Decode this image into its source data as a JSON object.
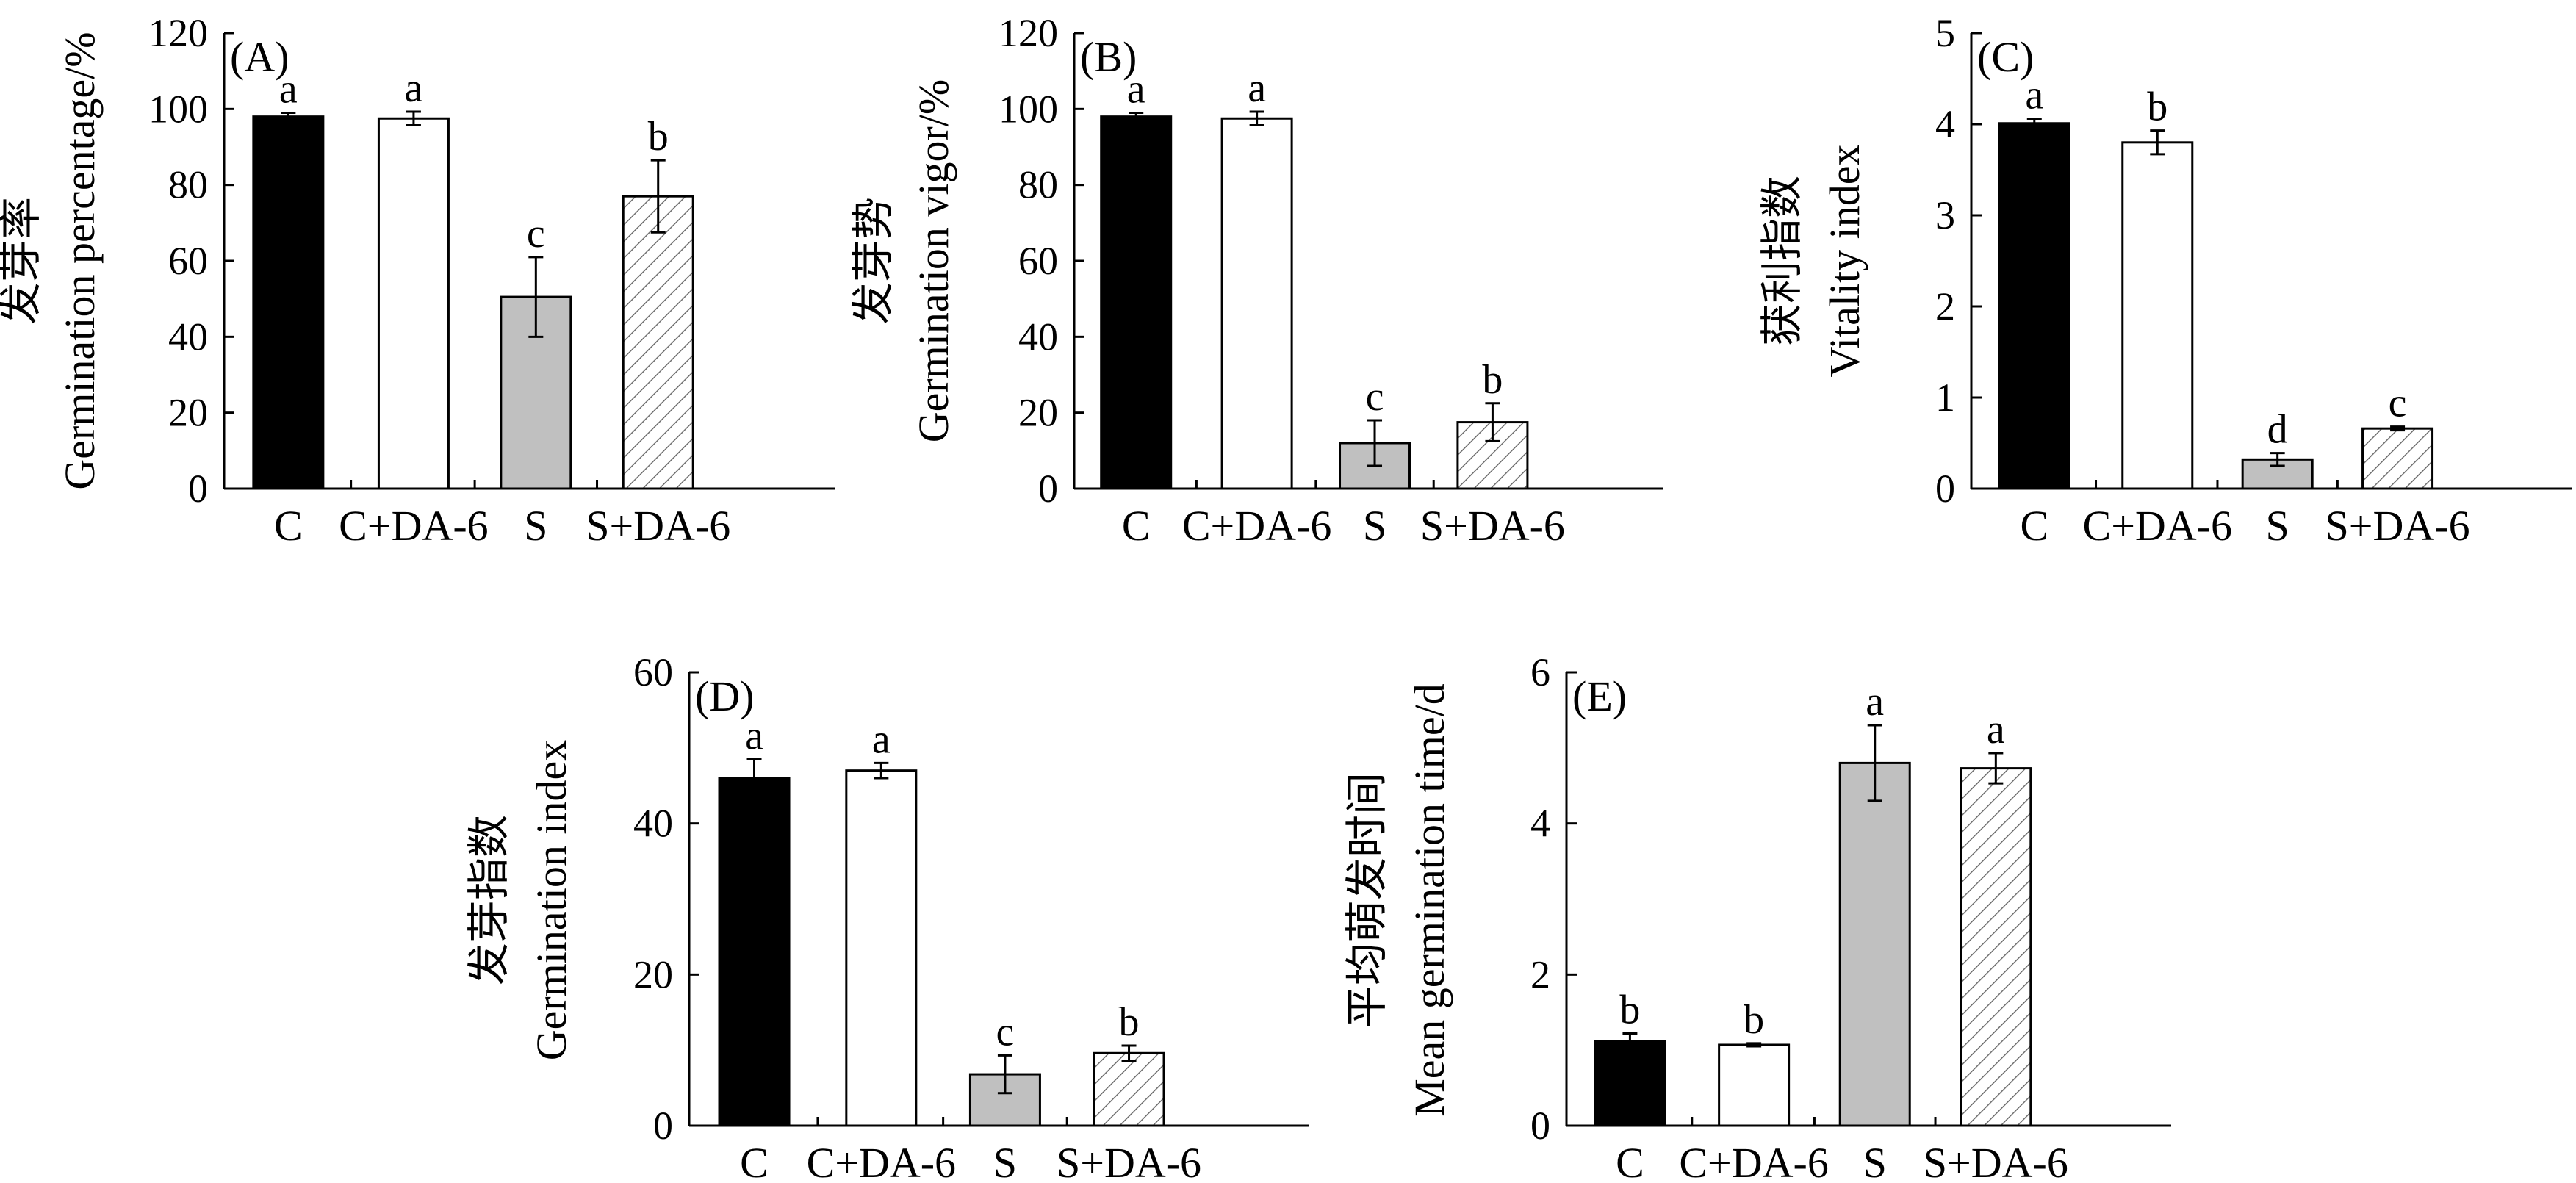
{
  "colors": {
    "C": "#000000",
    "C+DA-6": "#ffffff",
    "S": "#c0c0c0",
    "S+DA-6": "hatch",
    "hatch_line": "#707070",
    "axis": "#000000"
  },
  "chart_data": [
    {
      "id": "A",
      "type": "bar",
      "panel_label": "(A)",
      "ylabel_zh": "发芽率",
      "ylabel_en": "Germination percentage/%",
      "categories": [
        "C",
        "C+DA-6",
        "S",
        "S+DA-6"
      ],
      "values": [
        98,
        97.5,
        50.5,
        77
      ],
      "errors": [
        1.0,
        1.8,
        10.5,
        9.5
      ],
      "letters": [
        "a",
        "a",
        "c",
        "b"
      ],
      "ylim": [
        0,
        120
      ],
      "yticks": [
        "0",
        "20",
        "40",
        "60",
        "80",
        "100",
        "120"
      ],
      "grid": false
    },
    {
      "id": "B",
      "type": "bar",
      "panel_label": "(B)",
      "ylabel_zh": "发芽势",
      "ylabel_en": "Germination vigor/%",
      "categories": [
        "C",
        "C+DA-6",
        "S",
        "S+DA-6"
      ],
      "values": [
        98,
        97.5,
        12,
        17.5
      ],
      "errors": [
        1.0,
        1.8,
        6.0,
        5.0
      ],
      "letters": [
        "a",
        "a",
        "c",
        "b"
      ],
      "ylim": [
        0,
        120
      ],
      "yticks": [
        "0",
        "20",
        "40",
        "60",
        "80",
        "100",
        "120"
      ],
      "grid": false
    },
    {
      "id": "C",
      "type": "bar",
      "panel_label": "(C)",
      "ylabel_zh": "获利指数",
      "ylabel_en": "Vitality index",
      "categories": [
        "C",
        "C+DA-6",
        "S",
        "S+DA-6"
      ],
      "values": [
        4.01,
        3.8,
        0.32,
        0.66
      ],
      "errors": [
        0.05,
        0.13,
        0.07,
        0.02
      ],
      "letters": [
        "a",
        "b",
        "d",
        "c"
      ],
      "ylim": [
        0,
        5
      ],
      "yticks": [
        "0",
        "1",
        "2",
        "3",
        "4",
        "5"
      ],
      "grid": false
    },
    {
      "id": "D",
      "type": "bar",
      "panel_label": "(D)",
      "ylabel_zh": "发芽指数",
      "ylabel_en": "Germination index",
      "categories": [
        "C",
        "C+DA-6",
        "S",
        "S+DA-6"
      ],
      "values": [
        46,
        47,
        6.8,
        9.6
      ],
      "errors": [
        2.5,
        1.0,
        2.5,
        1.0
      ],
      "letters": [
        "a",
        "a",
        "c",
        "b"
      ],
      "ylim": [
        0,
        60
      ],
      "yticks": [
        "0",
        "20",
        "40",
        "60"
      ],
      "grid": false
    },
    {
      "id": "E",
      "type": "bar",
      "panel_label": "(E)",
      "ylabel_zh": "平均萌发时间",
      "ylabel_en": "Mean germination time/d",
      "categories": [
        "C",
        "C+DA-6",
        "S",
        "S+DA-6"
      ],
      "values": [
        1.12,
        1.07,
        4.8,
        4.73
      ],
      "errors": [
        0.1,
        0.02,
        0.5,
        0.2
      ],
      "letters": [
        "b",
        "b",
        "a",
        "a"
      ],
      "ylim": [
        0,
        6
      ],
      "yticks": [
        "0",
        "2",
        "4",
        "6"
      ],
      "grid": false
    }
  ]
}
